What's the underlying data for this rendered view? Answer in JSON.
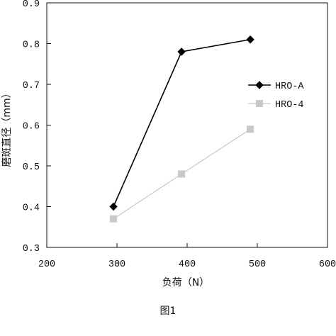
{
  "chart_data": {
    "type": "line",
    "x": [
      295,
      392,
      490
    ],
    "series": [
      {
        "name": "HRO-A",
        "values": [
          0.4,
          0.78,
          0.81
        ],
        "color": "#000000",
        "marker": "diamond"
      },
      {
        "name": "HRO-4",
        "values": [
          0.37,
          0.48,
          0.59
        ],
        "color": "#c8c8c8",
        "marker": "square"
      }
    ],
    "title": "",
    "xlabel": "负荷（N）",
    "ylabel": "磨斑直径（mm）",
    "xlim": [
      200,
      600
    ],
    "ylim": [
      0.3,
      0.9
    ],
    "xticks": [
      "200",
      "300",
      "400",
      "500",
      "600"
    ],
    "yticks": [
      "0.3",
      "0.4",
      "0.5",
      "0.6",
      "0.7",
      "0.8",
      "0.9"
    ],
    "grid": false,
    "legend_position": "right"
  },
  "figure": {
    "caption": "图1"
  }
}
